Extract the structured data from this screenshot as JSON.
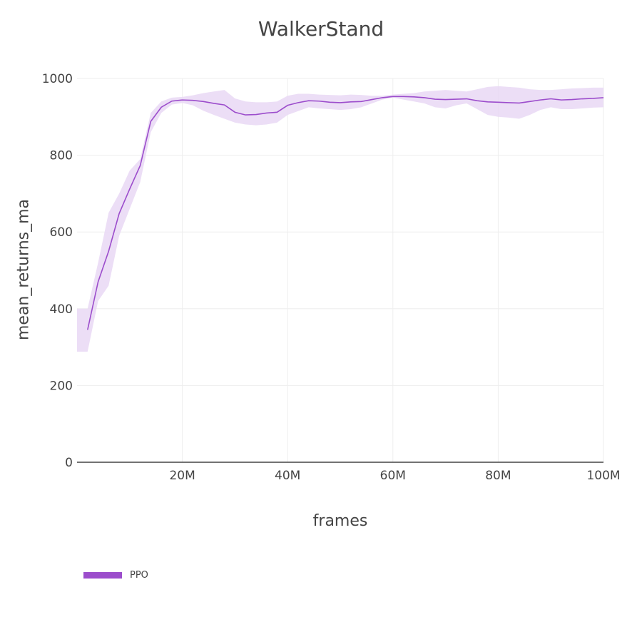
{
  "chart": {
    "title": "WalkerStand",
    "xlabel": "frames",
    "ylabel": "mean_returns_ma"
  },
  "legend": {
    "entries": [
      {
        "label": "PPO",
        "color": "#9c4dcc"
      }
    ]
  },
  "colors": {
    "line": "#9c4dcc",
    "band": "#e9d8f5",
    "grid": "#eeeeee",
    "axis": "#444444",
    "text": "#444444"
  },
  "chart_data": {
    "type": "line",
    "title": "WalkerStand",
    "xlabel": "frames",
    "ylabel": "mean_returns_ma",
    "xlim": [
      0,
      100000000
    ],
    "ylim": [
      0,
      1000
    ],
    "grid": true,
    "legend_position": "bottom-left",
    "x_ticks": [
      20000000,
      40000000,
      60000000,
      80000000,
      100000000
    ],
    "x_tick_labels": [
      "20M",
      "40M",
      "60M",
      "80M",
      "100M"
    ],
    "y_ticks": [
      0,
      200,
      400,
      600,
      800,
      1000
    ],
    "y_tick_labels": [
      "0",
      "200",
      "400",
      "600",
      "800",
      "1000"
    ],
    "series": [
      {
        "name": "PPO",
        "color": "#9c4dcc",
        "x": [
          0,
          2,
          4,
          6,
          8,
          10,
          12,
          14,
          16,
          18,
          20,
          22,
          24,
          26,
          28,
          30,
          32,
          34,
          36,
          38,
          40,
          42,
          44,
          46,
          48,
          50,
          52,
          54,
          56,
          58,
          60,
          62,
          64,
          66,
          68,
          70,
          72,
          74,
          76,
          78,
          80,
          82,
          84,
          86,
          88,
          90,
          92,
          94,
          96,
          98,
          100
        ],
        "x_units": "millions of frames",
        "values": [
          345,
          345,
          470,
          550,
          648,
          712,
          773,
          888,
          925,
          941,
          944,
          943,
          940,
          935,
          931,
          912,
          905,
          906,
          910,
          912,
          930,
          937,
          942,
          941,
          938,
          937,
          939,
          940,
          945,
          950,
          953,
          953,
          952,
          950,
          946,
          945,
          946,
          947,
          942,
          939,
          938,
          937,
          936,
          940,
          944,
          947,
          944,
          945,
          947,
          948,
          950
        ],
        "upper": [
          400,
          400,
          520,
          650,
          700,
          760,
          790,
          910,
          940,
          950,
          952,
          956,
          962,
          966,
          970,
          948,
          940,
          938,
          938,
          940,
          955,
          960,
          960,
          958,
          957,
          956,
          958,
          957,
          955,
          955,
          958,
          960,
          962,
          966,
          968,
          970,
          968,
          966,
          972,
          978,
          980,
          978,
          976,
          972,
          970,
          970,
          972,
          974,
          975,
          976,
          976
        ],
        "lower": [
          288,
          288,
          420,
          460,
          590,
          660,
          730,
          860,
          910,
          932,
          936,
          930,
          916,
          905,
          895,
          885,
          880,
          878,
          880,
          885,
          905,
          915,
          925,
          922,
          920,
          918,
          920,
          925,
          935,
          945,
          950,
          945,
          940,
          935,
          925,
          922,
          930,
          935,
          920,
          905,
          900,
          898,
          895,
          905,
          918,
          925,
          920,
          920,
          922,
          924,
          925
        ]
      }
    ]
  }
}
